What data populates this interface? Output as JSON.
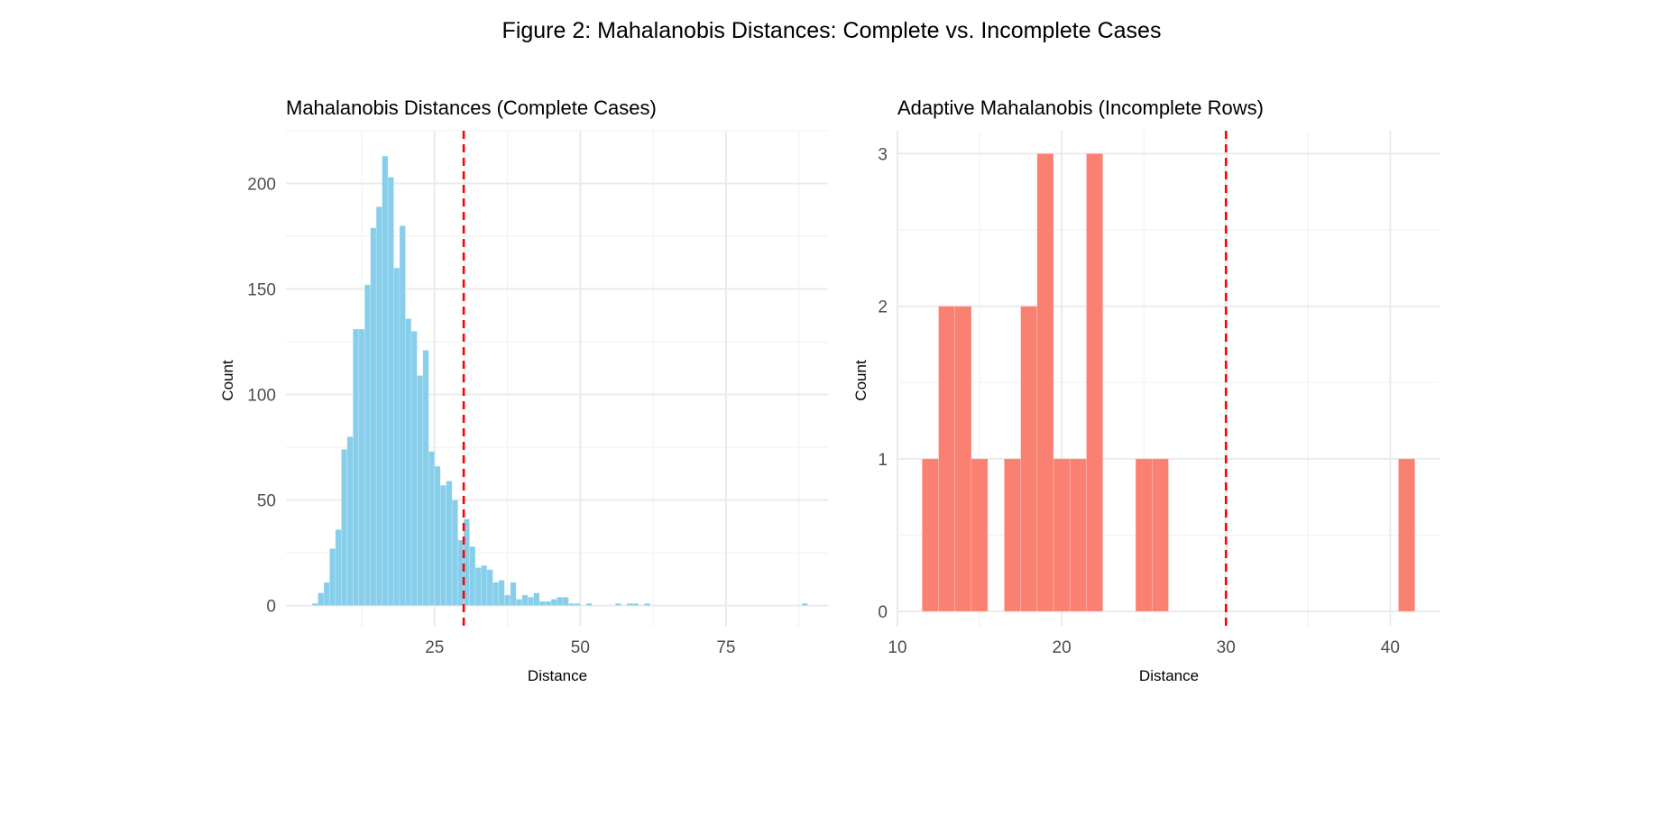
{
  "figure_title": "Figure 2: Mahalanobis Distances: Complete vs. Incomplete Cases",
  "chart_data": [
    {
      "type": "bar",
      "title": "Mahalanobis Distances (Complete Cases)",
      "xlabel": "Distance",
      "ylabel": "Count",
      "xlim": [
        -0.5,
        92.5
      ],
      "ylim": [
        -10,
        225
      ],
      "x_ticks": [
        25,
        50,
        75
      ],
      "y_ticks": [
        0,
        50,
        100,
        150,
        200
      ],
      "bin_width": 1,
      "bin_start": 4,
      "values": [
        1,
        6,
        11,
        27,
        36,
        74,
        80,
        131,
        131,
        152,
        179,
        189,
        213,
        203,
        160,
        180,
        136,
        130,
        109,
        121,
        73,
        66,
        57,
        59,
        50,
        31,
        41,
        28,
        18,
        19,
        17,
        11,
        12,
        5,
        11,
        3,
        5,
        4,
        6,
        2,
        2,
        3,
        4,
        4,
        1,
        1,
        0,
        1,
        0,
        0,
        0,
        0,
        1,
        0,
        1,
        1,
        0,
        1,
        0,
        0,
        0,
        0,
        0,
        0,
        0,
        0,
        0,
        0,
        0,
        0,
        0,
        0,
        0,
        0,
        0,
        0,
        0,
        0,
        0,
        0,
        0,
        0,
        0,
        0,
        1
      ],
      "fill": "#87CEEB",
      "reference_line": {
        "x": 30,
        "color": "#FF0000",
        "style": "dashed"
      },
      "grid": true
    },
    {
      "type": "bar",
      "title": "Adaptive Mahalanobis (Incomplete Rows)",
      "xlabel": "Distance",
      "ylabel": "Count",
      "xlim": [
        10,
        43
      ],
      "ylim": [
        -0.1,
        3.15
      ],
      "x_ticks": [
        10,
        20,
        30,
        40
      ],
      "y_ticks": [
        0,
        1,
        2,
        3
      ],
      "bin_width": 1,
      "bin_start": 11.5,
      "values": [
        1,
        2,
        2,
        1,
        0,
        1,
        2,
        3,
        1,
        1,
        3,
        0,
        0,
        1,
        1,
        0,
        0,
        0,
        0,
        0,
        0,
        0,
        0,
        0,
        0,
        0,
        0,
        0,
        0,
        1
      ],
      "fill": "#FA8072",
      "reference_line": {
        "x": 30,
        "color": "#FF0000",
        "style": "dashed"
      },
      "grid": true
    }
  ]
}
